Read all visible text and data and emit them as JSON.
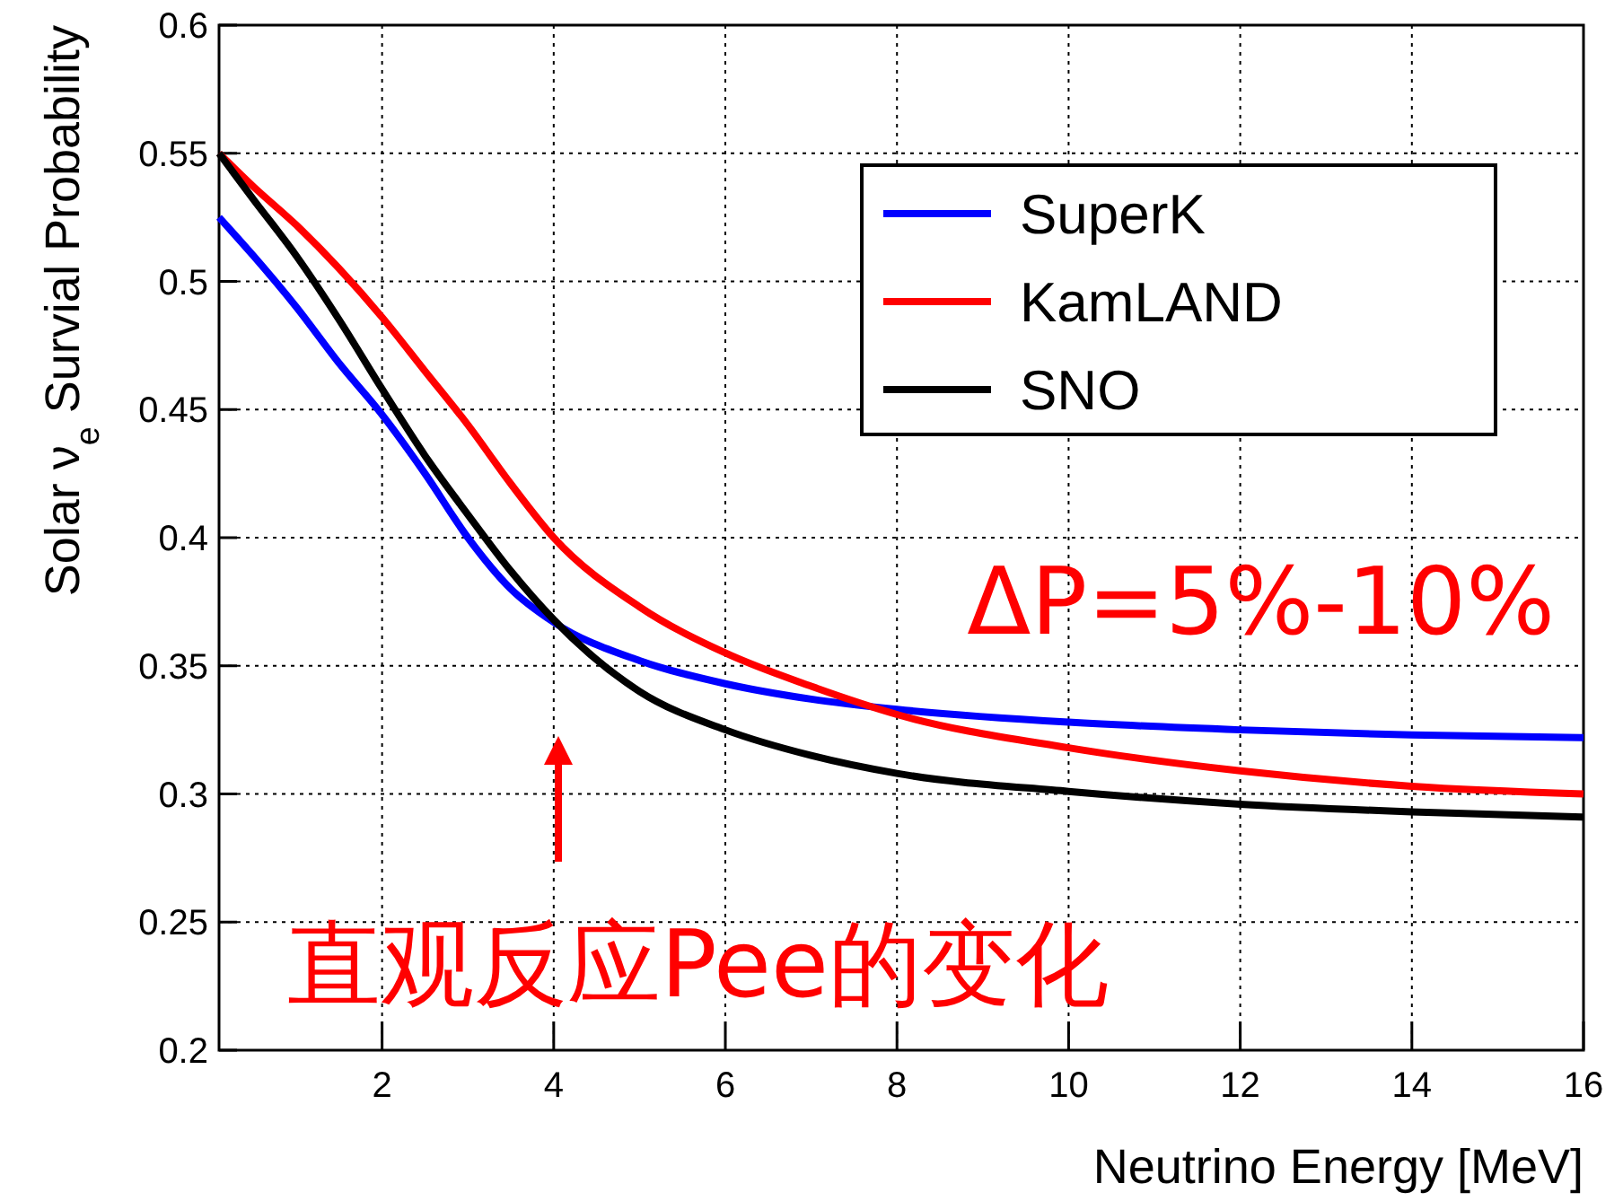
{
  "chart_data": {
    "type": "line",
    "xlabel": "Neutrino Energy [MeV]",
    "ylabel": "Solar ν$_{e}$ Survial Probability",
    "x": [
      0.1,
      0.5,
      1,
      1.5,
      2,
      2.5,
      3,
      3.5,
      4,
      5,
      6,
      7,
      8,
      10,
      12,
      14,
      16
    ],
    "series": [
      {
        "name": "SuperK",
        "color": "#0000ff",
        "values": [
          0.525,
          0.51,
          0.49,
          0.468,
          0.448,
          0.425,
          0.4,
          0.38,
          0.367,
          0.352,
          0.343,
          0.337,
          0.333,
          0.328,
          0.325,
          0.323,
          0.322
        ]
      },
      {
        "name": "KamLAND",
        "color": "#ff0000",
        "values": [
          0.55,
          0.537,
          0.522,
          0.505,
          0.486,
          0.465,
          0.444,
          0.421,
          0.4,
          0.373,
          0.355,
          0.342,
          0.331,
          0.318,
          0.309,
          0.303,
          0.3
        ]
      },
      {
        "name": "SNO",
        "color": "#000000",
        "values": [
          0.55,
          0.532,
          0.51,
          0.485,
          0.458,
          0.432,
          0.409,
          0.387,
          0.368,
          0.34,
          0.325,
          0.315,
          0.308,
          0.301,
          0.296,
          0.293,
          0.291
        ]
      }
    ],
    "xlim": [
      0.1,
      16
    ],
    "xticks": [
      2,
      4,
      6,
      8,
      10,
      12,
      14,
      16
    ],
    "ylim": [
      0.2,
      0.6
    ],
    "yticks": [
      0.2,
      0.25,
      0.3,
      0.35,
      0.4,
      0.45,
      0.5,
      0.55,
      0.6
    ],
    "grid": true,
    "legend": "top right",
    "line_style": "solid",
    "marker": "none",
    "annotations": [
      "ΔP=5%-10%",
      "直观反应Pee的变化"
    ]
  }
}
